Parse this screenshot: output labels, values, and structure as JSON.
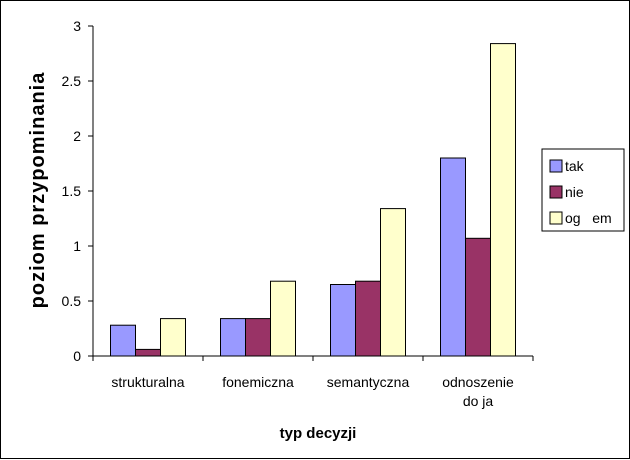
{
  "chart_data": {
    "type": "bar",
    "categories": [
      "strukturalna",
      "fonemiczna",
      "semantyczna",
      "odnoszenie do ja"
    ],
    "category_lines": [
      [
        "strukturalna"
      ],
      [
        "fonemiczna"
      ],
      [
        "semantyczna"
      ],
      [
        "odnoszenie",
        "do ja"
      ]
    ],
    "series": [
      {
        "name": "tak",
        "values": [
          0.28,
          0.34,
          0.65,
          1.8
        ],
        "color": "#9999ff"
      },
      {
        "name": "nie",
        "values": [
          0.06,
          0.34,
          0.68,
          1.07
        ],
        "color": "#993366"
      },
      {
        "name": "og   em",
        "values": [
          0.34,
          0.68,
          1.34,
          2.84
        ],
        "color": "#ffffcc"
      }
    ],
    "xlabel": "typ decyzji",
    "ylabel": "poziom przypominania",
    "ylim": [
      0,
      3
    ],
    "yticks": [
      "0",
      "0.5",
      "1",
      "1.5",
      "2",
      "2.5",
      "3"
    ],
    "grid": false,
    "legend": "right"
  }
}
